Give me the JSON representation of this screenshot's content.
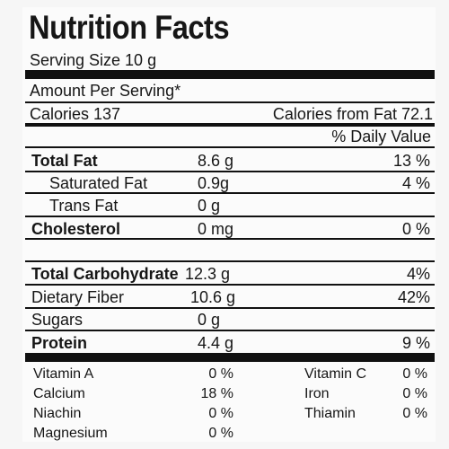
{
  "title": "Nutrition Facts",
  "serving_size": "Serving Size 10 g",
  "amount_per_serving": "Amount Per Serving*",
  "calories": "Calories 137",
  "calories_from_fat": "Calories from Fat 72.1",
  "daily_value_header": "% Daily Value",
  "rows": [
    {
      "label": "Total Fat",
      "amount": "8.6 g",
      "dv": "13 %"
    },
    {
      "label": "Saturated Fat",
      "amount": "0.9g",
      "dv": "4 %"
    },
    {
      "label": "Trans Fat",
      "amount": "0 g",
      "dv": ""
    },
    {
      "label": "Cholesterol",
      "amount": "0 mg",
      "dv": "0 %"
    },
    {
      "label": "Total Carbohydrate",
      "amount": "12.3 g",
      "dv": "4%"
    },
    {
      "label": "Dietary Fiber",
      "amount": "10.6 g",
      "dv": "42%"
    },
    {
      "label": "Sugars",
      "amount": "0 g",
      "dv": ""
    },
    {
      "label": "Protein",
      "amount": "4.4 g",
      "dv": "9 %"
    }
  ],
  "vitamins": [
    {
      "name": "Vitamin A",
      "value": "0 %"
    },
    {
      "name": "Vitamin C",
      "value": "0 %"
    },
    {
      "name": "Calcium",
      "value": "18 %"
    },
    {
      "name": "Iron",
      "value": "0 %"
    },
    {
      "name": "Niachin",
      "value": "0 %"
    },
    {
      "name": "Thiamin",
      "value": "0 %"
    },
    {
      "name": "Magnesium",
      "value": "0 %"
    }
  ]
}
